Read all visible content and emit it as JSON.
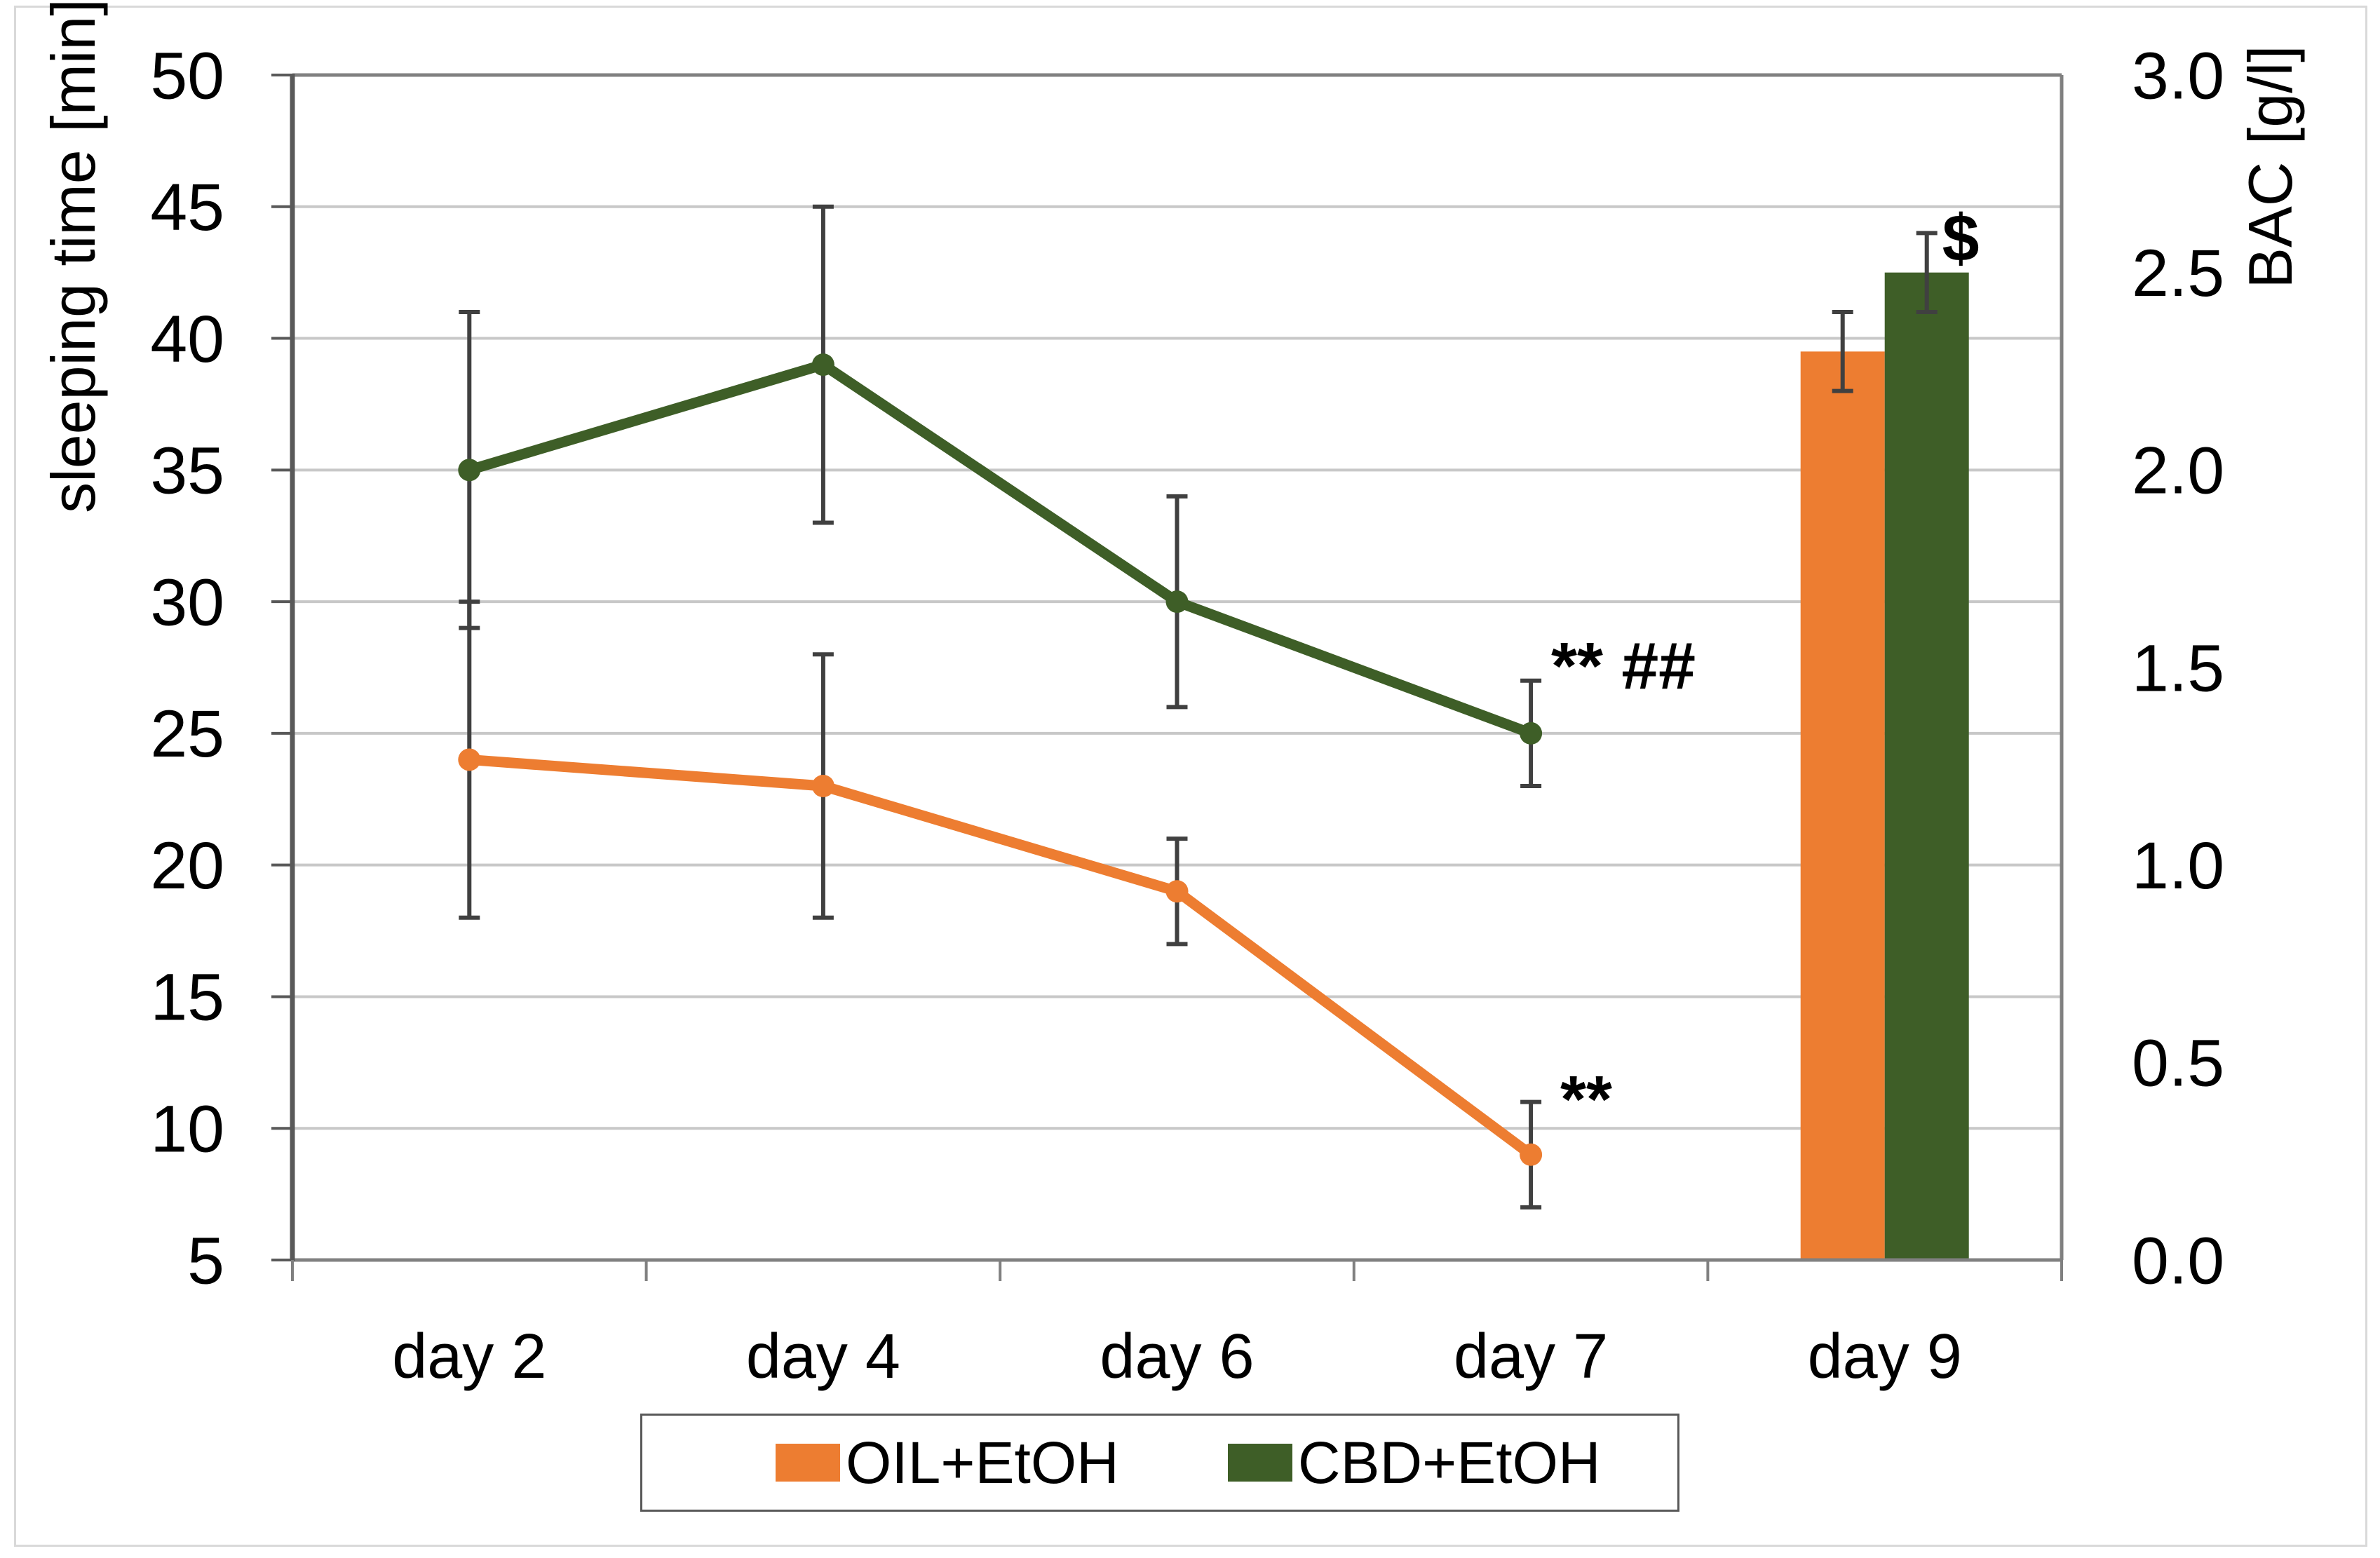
{
  "chart_data": {
    "type": "line+bar combo, dual y-axis",
    "categories": [
      "day 2",
      "day 4",
      "day 6",
      "day 7",
      "day 9"
    ],
    "left_axis": {
      "label": "sleeping time [min]",
      "min": 5,
      "max": 50,
      "step": 5,
      "ticks": [
        "50",
        "45",
        "40",
        "35",
        "30",
        "25",
        "20",
        "15",
        "10",
        "5"
      ]
    },
    "right_axis": {
      "label": "BAC [g/l]",
      "min": 0.0,
      "max": 3.0,
      "step": 0.5,
      "ticks": [
        "3.0",
        "2.5",
        "2.0",
        "1.5",
        "1.0",
        "0.5",
        "0.0"
      ]
    },
    "grid": "horizontal major gridlines at left-axis intervals, frame on",
    "legend_position": "bottom",
    "line_series": [
      {
        "name": "OIL+EtOH",
        "color": "#ED7D31",
        "axis": "left",
        "points": [
          {
            "category": "day 2",
            "value": 24,
            "err_low": 18,
            "err_high": 30
          },
          {
            "category": "day 4",
            "value": 23,
            "err_low": 18,
            "err_high": 28
          },
          {
            "category": "day 6",
            "value": 19,
            "err_low": 17,
            "err_high": 21
          },
          {
            "category": "day 7",
            "value": 9,
            "err_low": 7,
            "err_high": 11
          }
        ]
      },
      {
        "name": "CBD+EtOH",
        "color": "#3E5E27",
        "axis": "left",
        "points": [
          {
            "category": "day 2",
            "value": 35,
            "err_low": 29,
            "err_high": 41
          },
          {
            "category": "day 4",
            "value": 39,
            "err_low": 33,
            "err_high": 45
          },
          {
            "category": "day 6",
            "value": 30,
            "err_low": 26,
            "err_high": 34
          },
          {
            "category": "day 7",
            "value": 25,
            "err_low": 23,
            "err_high": 27
          }
        ]
      }
    ],
    "bar_series": [
      {
        "name": "OIL+EtOH",
        "color": "#ED7D31",
        "axis": "right",
        "category": "day 9",
        "value": 2.3,
        "err_low": 2.2,
        "err_high": 2.4
      },
      {
        "name": "CBD+EtOH",
        "color": "#3E5E27",
        "axis": "right",
        "category": "day 9",
        "value": 2.5,
        "err_low": 2.4,
        "err_high": 2.6
      }
    ],
    "annotations": [
      {
        "id": "oil-day7-significance",
        "text": "**"
      },
      {
        "id": "cbd-day7-significance",
        "text": "** ##"
      },
      {
        "id": "cbd-bar-significance",
        "text": "$"
      }
    ],
    "colors": {
      "oil": "#ED7D31",
      "cbd": "#3E5E27",
      "error_bar": "#404040",
      "gridline": "#c8c8c8",
      "frame": "#808080",
      "axis_line": "#595959"
    }
  },
  "legend": {
    "items": [
      {
        "label": "OIL+EtOH",
        "color": "#ED7D31"
      },
      {
        "label": "CBD+EtOH",
        "color": "#3E5E27"
      }
    ]
  }
}
